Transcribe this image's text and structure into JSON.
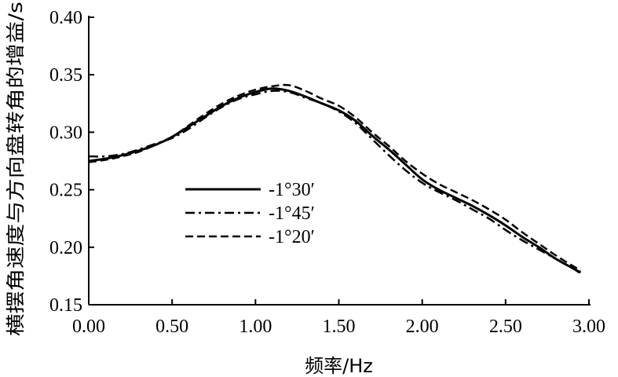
{
  "chart_data": {
    "type": "line",
    "xlabel": "频率/Hz",
    "ylabel": "横摆角速度与方向盘转角的增益/s",
    "xlim": [
      0.0,
      3.0
    ],
    "ylim": [
      0.15,
      0.4
    ],
    "xticks": [
      "0.00",
      "0.50",
      "1.00",
      "1.50",
      "2.00",
      "2.50",
      "3.00"
    ],
    "yticks": [
      "0.15",
      "0.20",
      "0.25",
      "0.30",
      "0.35",
      "0.40"
    ],
    "grid": false,
    "legend_position": "center-left",
    "series": [
      {
        "name": "-1°30′",
        "style": "solid",
        "x": [
          0.0,
          0.1,
          0.2,
          0.3,
          0.4,
          0.5,
          0.6,
          0.7,
          0.8,
          0.9,
          1.0,
          1.1,
          1.2,
          1.3,
          1.4,
          1.5,
          1.6,
          1.7,
          1.8,
          1.9,
          2.0,
          2.1,
          2.2,
          2.3,
          2.4,
          2.5,
          2.6,
          2.7,
          2.8,
          2.9,
          2.95
        ],
        "y": [
          0.275,
          0.277,
          0.28,
          0.284,
          0.289,
          0.296,
          0.305,
          0.314,
          0.323,
          0.33,
          0.335,
          0.338,
          0.336,
          0.331,
          0.325,
          0.319,
          0.31,
          0.297,
          0.285,
          0.272,
          0.259,
          0.25,
          0.243,
          0.236,
          0.228,
          0.219,
          0.209,
          0.2,
          0.19,
          0.182,
          0.178
        ]
      },
      {
        "name": "-1°45′",
        "style": "dashdot",
        "x": [
          0.0,
          0.1,
          0.2,
          0.3,
          0.4,
          0.5,
          0.6,
          0.7,
          0.8,
          0.9,
          1.0,
          1.1,
          1.2,
          1.3,
          1.4,
          1.5,
          1.6,
          1.7,
          1.8,
          1.9,
          2.0,
          2.1,
          2.2,
          2.3,
          2.4,
          2.5,
          2.6,
          2.7,
          2.8,
          2.9,
          2.95
        ],
        "y": [
          0.279,
          0.279,
          0.281,
          0.285,
          0.29,
          0.295,
          0.303,
          0.313,
          0.322,
          0.329,
          0.333,
          0.336,
          0.335,
          0.33,
          0.325,
          0.318,
          0.308,
          0.294,
          0.28,
          0.267,
          0.256,
          0.248,
          0.241,
          0.233,
          0.225,
          0.215,
          0.206,
          0.198,
          0.19,
          0.182,
          0.177
        ]
      },
      {
        "name": "-1°20′",
        "style": "dashed",
        "x": [
          0.0,
          0.1,
          0.2,
          0.3,
          0.4,
          0.5,
          0.6,
          0.7,
          0.8,
          0.9,
          1.0,
          1.1,
          1.2,
          1.3,
          1.4,
          1.5,
          1.6,
          1.7,
          1.8,
          1.9,
          2.0,
          2.1,
          2.2,
          2.3,
          2.4,
          2.5,
          2.6,
          2.7,
          2.8,
          2.9,
          2.95
        ],
        "y": [
          0.274,
          0.276,
          0.279,
          0.283,
          0.289,
          0.296,
          0.306,
          0.316,
          0.325,
          0.332,
          0.337,
          0.34,
          0.341,
          0.336,
          0.329,
          0.323,
          0.313,
          0.3,
          0.288,
          0.275,
          0.264,
          0.255,
          0.248,
          0.241,
          0.233,
          0.224,
          0.213,
          0.203,
          0.193,
          0.184,
          0.18
        ]
      }
    ]
  }
}
